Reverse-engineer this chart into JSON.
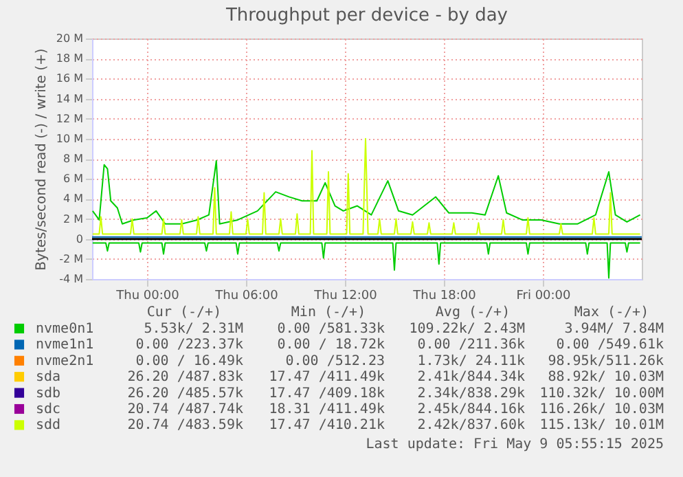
{
  "chart_data": {
    "type": "line",
    "title": "Throughput per device - by day",
    "ylabel": "Bytes/second read (-) / write (+)",
    "xlim": [
      "2025-05-07T20:40",
      "2025-05-09T06:00"
    ],
    "xticks": [
      {
        "value": "2025-05-08T00:00",
        "label": "Thu 00:00"
      },
      {
        "value": "2025-05-08T06:00",
        "label": "Thu 06:00"
      },
      {
        "value": "2025-05-08T12:00",
        "label": "Thu 12:00"
      },
      {
        "value": "2025-05-08T18:00",
        "label": "Thu 18:00"
      },
      {
        "value": "2025-05-09T00:00",
        "label": "Fri 00:00"
      }
    ],
    "ylim": [
      -4,
      20
    ],
    "yticks": [
      {
        "value": -4,
        "label": "-4 M"
      },
      {
        "value": -2,
        "label": "-2 M"
      },
      {
        "value": 0,
        "label": "0"
      },
      {
        "value": 2,
        "label": "2 M"
      },
      {
        "value": 4,
        "label": "4 M"
      },
      {
        "value": 6,
        "label": "6 M"
      },
      {
        "value": 8,
        "label": "8 M"
      },
      {
        "value": 10,
        "label": "10 M"
      },
      {
        "value": 12,
        "label": "12 M"
      },
      {
        "value": 14,
        "label": "14 M"
      },
      {
        "value": 16,
        "label": "16 M"
      },
      {
        "value": 18,
        "label": "18 M"
      },
      {
        "value": 20,
        "label": "20 M"
      }
    ],
    "grid": true,
    "legend": "bottom",
    "line_style": "solid",
    "marker": "none",
    "ref_lines": [
      {
        "axis": "y",
        "value": 0,
        "color": "#000000"
      }
    ],
    "x": [
      "2025-05-07T20:42",
      "2025-05-07T21:06",
      "2025-05-07T21:12",
      "2025-05-07T21:18",
      "2025-05-07T23:00",
      "2025-05-07T23:06",
      "2025-05-07T23:12",
      "2025-05-08T00:54",
      "2025-05-08T01:00",
      "2025-05-08T01:06",
      "2025-05-08T02:00",
      "2025-05-08T02:06",
      "2025-05-08T02:12",
      "2025-05-08T03:00",
      "2025-05-08T03:06",
      "2025-05-08T03:12",
      "2025-05-08T04:00",
      "2025-05-08T04:06",
      "2025-05-08T04:12",
      "2025-05-08T05:00",
      "2025-05-08T05:06",
      "2025-05-08T05:12",
      "2025-05-08T06:00",
      "2025-05-08T06:06",
      "2025-05-08T06:12",
      "2025-05-08T07:00",
      "2025-05-08T07:06",
      "2025-05-08T07:12",
      "2025-05-08T08:00",
      "2025-05-08T08:06",
      "2025-05-08T08:12",
      "2025-05-08T09:00",
      "2025-05-08T09:06",
      "2025-05-08T09:12",
      "2025-05-08T09:54",
      "2025-05-08T10:00",
      "2025-05-08T10:06",
      "2025-05-08T10:54",
      "2025-05-08T11:00",
      "2025-05-08T11:06",
      "2025-05-08T12:06",
      "2025-05-08T12:12",
      "2025-05-08T12:18",
      "2025-05-08T13:06",
      "2025-05-08T13:15",
      "2025-05-08T13:24",
      "2025-05-08T14:00",
      "2025-05-08T14:06",
      "2025-05-08T14:12",
      "2025-05-08T15:00",
      "2025-05-08T15:06",
      "2025-05-08T15:12",
      "2025-05-08T16:00",
      "2025-05-08T16:06",
      "2025-05-08T16:12",
      "2025-05-08T17:00",
      "2025-05-08T17:06",
      "2025-05-08T17:12",
      "2025-05-08T18:30",
      "2025-05-08T18:36",
      "2025-05-08T18:42",
      "2025-05-08T20:00",
      "2025-05-08T20:06",
      "2025-05-08T20:12",
      "2025-05-08T21:30",
      "2025-05-08T21:36",
      "2025-05-08T21:42",
      "2025-05-08T23:00",
      "2025-05-08T23:06",
      "2025-05-08T23:12",
      "2025-05-09T01:00",
      "2025-05-09T01:06",
      "2025-05-09T01:12",
      "2025-05-09T03:00",
      "2025-05-09T03:06",
      "2025-05-09T03:12",
      "2025-05-09T04:00",
      "2025-05-09T04:06",
      "2025-05-09T04:12",
      "2025-05-09T05:54"
    ],
    "series": [
      {
        "name": "nvme0n1",
        "color": "#00cc00",
        "x": [
          "2025-05-07T20:42",
          "2025-05-07T21:06",
          "2025-05-07T21:24",
          "2025-05-07T21:36",
          "2025-05-07T21:48",
          "2025-05-07T22:12",
          "2025-05-07T22:30",
          "2025-05-07T23:12",
          "2025-05-08T00:00",
          "2025-05-08T00:33",
          "2025-05-08T01:06",
          "2025-05-08T02:06",
          "2025-05-08T03:03",
          "2025-05-08T03:45",
          "2025-05-08T04:12",
          "2025-05-08T04:24",
          "2025-05-08T05:30",
          "2025-05-08T06:42",
          "2025-05-08T07:48",
          "2025-05-08T08:36",
          "2025-05-08T09:24",
          "2025-05-08T10:18",
          "2025-05-08T10:48",
          "2025-05-08T11:24",
          "2025-05-08T11:54",
          "2025-05-08T12:45",
          "2025-05-08T13:36",
          "2025-05-08T14:36",
          "2025-05-08T15:15",
          "2025-05-08T16:06",
          "2025-05-08T17:30",
          "2025-05-08T18:18",
          "2025-05-08T19:42",
          "2025-05-08T20:30",
          "2025-05-08T21:18",
          "2025-05-08T21:48",
          "2025-05-08T22:45",
          "2025-05-08T23:54",
          "2025-05-09T01:00",
          "2025-05-09T02:06",
          "2025-05-09T03:12",
          "2025-05-09T04:00",
          "2025-05-09T04:24",
          "2025-05-09T05:06",
          "2025-05-09T05:54"
        ],
        "values": [
          2.8,
          1.9,
          7.4,
          7.0,
          3.8,
          3.1,
          1.5,
          1.9,
          2.1,
          2.8,
          1.5,
          1.5,
          1.9,
          2.4,
          7.8,
          1.5,
          1.9,
          2.8,
          4.7,
          4.2,
          3.8,
          3.8,
          5.6,
          3.3,
          2.8,
          3.3,
          2.4,
          5.8,
          2.8,
          2.4,
          4.2,
          2.6,
          2.6,
          2.4,
          6.3,
          2.6,
          1.9,
          1.9,
          1.5,
          1.5,
          2.4,
          6.7,
          2.4,
          1.7,
          2.4
        ]
      },
      {
        "color": "#00cc00",
        "x": [
          "2025-05-07T20:42",
          "2025-05-07T21:30",
          "2025-05-07T21:36",
          "2025-05-07T21:42",
          "2025-05-07T23:30",
          "2025-05-07T23:36",
          "2025-05-07T23:42",
          "2025-05-08T00:54",
          "2025-05-08T01:00",
          "2025-05-08T01:06",
          "2025-05-08T03:30",
          "2025-05-08T03:36",
          "2025-05-08T03:42",
          "2025-05-08T05:24",
          "2025-05-08T05:30",
          "2025-05-08T05:36",
          "2025-05-08T07:54",
          "2025-05-08T08:00",
          "2025-05-08T08:06",
          "2025-05-08T10:36",
          "2025-05-08T10:42",
          "2025-05-08T10:48",
          "2025-05-08T14:54",
          "2025-05-08T15:00",
          "2025-05-08T15:06",
          "2025-05-08T17:36",
          "2025-05-08T17:42",
          "2025-05-08T17:48",
          "2025-05-08T20:36",
          "2025-05-08T20:42",
          "2025-05-08T20:48",
          "2025-05-08T23:00",
          "2025-05-08T23:06",
          "2025-05-08T23:12",
          "2025-05-09T02:36",
          "2025-05-09T02:42",
          "2025-05-09T02:48",
          "2025-05-09T03:54",
          "2025-05-09T04:00",
          "2025-05-09T04:06",
          "2025-05-09T05:00",
          "2025-05-09T05:06",
          "2025-05-09T05:12",
          "2025-05-09T05:54"
        ],
        "values": [
          -0.4,
          -0.4,
          -1.2,
          -0.4,
          -0.4,
          -1.3,
          -0.4,
          -0.4,
          -1.5,
          -0.4,
          -0.4,
          -1.2,
          -0.4,
          -0.4,
          -1.5,
          -0.4,
          -0.4,
          -1.2,
          -0.4,
          -0.4,
          -1.9,
          -0.4,
          -0.4,
          -3.1,
          -0.4,
          -0.4,
          -2.5,
          -0.4,
          -0.4,
          -1.5,
          -0.4,
          -0.4,
          -1.5,
          -0.4,
          -0.4,
          -1.5,
          -0.4,
          -0.4,
          -3.9,
          -0.4,
          -0.4,
          -1.3,
          -0.4,
          -0.4
        ]
      },
      {
        "name": "nvme1n1",
        "color": "#0066b3",
        "x": [
          "2025-05-07T20:40",
          "2025-05-09T06:00"
        ],
        "values": [
          0.2,
          0.2
        ]
      },
      {
        "name": "nvme2n1",
        "color": "#ff8000",
        "values": [
          null,
          null,
          null,
          null,
          null,
          null,
          null,
          null,
          null,
          null,
          null,
          null,
          null,
          null,
          null,
          null,
          null,
          null,
          null,
          null,
          null,
          null,
          null,
          null,
          null,
          null,
          null,
          null,
          null,
          null,
          null,
          null,
          null,
          null,
          null,
          null,
          null,
          null,
          null,
          null,
          null,
          null,
          null,
          null,
          null,
          null,
          null,
          null,
          null,
          null,
          null,
          null,
          null,
          null,
          null,
          null,
          null,
          null,
          null,
          null,
          null,
          null,
          null,
          null,
          null,
          null,
          null,
          null,
          null,
          null,
          null,
          null,
          null,
          null,
          null,
          null,
          null,
          null,
          null,
          null
        ]
      },
      {
        "name": "sda",
        "color": "#ffcc00",
        "values": [
          null,
          null,
          null,
          null,
          null,
          null,
          null,
          null,
          null,
          null,
          null,
          null,
          null,
          null,
          null,
          null,
          null,
          null,
          null,
          null,
          null,
          null,
          null,
          null,
          null,
          null,
          null,
          null,
          null,
          null,
          null,
          null,
          null,
          null,
          null,
          null,
          null,
          null,
          null,
          null,
          null,
          null,
          null,
          null,
          null,
          null,
          null,
          null,
          null,
          null,
          null,
          null,
          null,
          null,
          null,
          null,
          null,
          null,
          null,
          null,
          null,
          null,
          null,
          null,
          null,
          null,
          null,
          null,
          null,
          null,
          null,
          null,
          null,
          null,
          null,
          null,
          null,
          null,
          null,
          null
        ]
      },
      {
        "name": "sdb",
        "color": "#330099",
        "values": [
          null,
          null,
          null,
          null,
          null,
          null,
          null,
          null,
          null,
          null,
          null,
          null,
          null,
          null,
          null,
          null,
          null,
          null,
          null,
          null,
          null,
          null,
          null,
          null,
          null,
          null,
          null,
          null,
          null,
          null,
          null,
          null,
          null,
          null,
          null,
          null,
          null,
          null,
          null,
          null,
          null,
          null,
          null,
          null,
          null,
          null,
          null,
          null,
          null,
          null,
          null,
          null,
          null,
          null,
          null,
          null,
          null,
          null,
          null,
          null,
          null,
          null,
          null,
          null,
          null,
          null,
          null,
          null,
          null,
          null,
          null,
          null,
          null,
          null,
          null,
          null,
          null,
          null,
          null,
          null
        ]
      },
      {
        "name": "sdc",
        "color": "#990099",
        "values": [
          null,
          null,
          null,
          null,
          null,
          null,
          null,
          null,
          null,
          null,
          null,
          null,
          null,
          null,
          null,
          null,
          null,
          null,
          null,
          null,
          null,
          null,
          null,
          null,
          null,
          null,
          null,
          null,
          null,
          null,
          null,
          null,
          null,
          null,
          null,
          null,
          null,
          null,
          null,
          null,
          null,
          null,
          null,
          null,
          null,
          null,
          null,
          null,
          null,
          null,
          null,
          null,
          null,
          null,
          null,
          null,
          null,
          null,
          null,
          null,
          null,
          null,
          null,
          null,
          null,
          null,
          null,
          null,
          null,
          null,
          null,
          null,
          null,
          null,
          null,
          null,
          null,
          null,
          null,
          null
        ]
      },
      {
        "name": "sdd",
        "color": "#ccff00",
        "values": [
          0.5,
          0.5,
          2.2,
          0.5,
          0.5,
          2.0,
          0.5,
          0.5,
          2.0,
          0.5,
          0.5,
          1.9,
          0.5,
          0.5,
          2.2,
          0.5,
          0.5,
          5.1,
          0.5,
          0.5,
          2.7,
          0.5,
          0.5,
          2.0,
          0.5,
          0.5,
          4.6,
          0.5,
          0.5,
          2.0,
          0.5,
          0.5,
          2.5,
          0.5,
          0.5,
          8.8,
          0.5,
          0.5,
          6.7,
          0.5,
          0.5,
          6.5,
          0.5,
          0.5,
          10.0,
          0.5,
          0.5,
          2.0,
          0.5,
          0.5,
          2.0,
          0.5,
          0.5,
          1.7,
          0.5,
          0.5,
          1.6,
          0.5,
          0.5,
          1.6,
          0.5,
          0.5,
          1.6,
          0.5,
          0.5,
          1.9,
          0.5,
          0.5,
          2.1,
          0.5,
          0.5,
          1.5,
          0.5,
          0.5,
          2.1,
          0.5,
          0.5,
          4.6,
          0.5,
          0.5
        ]
      }
    ],
    "annotations": [
      "Cur (-/+)",
      "Min (-/+)",
      "Avg (-/+)",
      "Max (-/+)",
      "5.53k/  2.31M",
      "0.00 /581.33k",
      "109.22k/  2.43M",
      "3.94M/  7.84M",
      "0.00 /223.37k",
      "0.00 / 18.72k",
      "0.00 /211.36k",
      "0.00 /549.61k",
      "0.00 / 16.49k",
      "0.00 /512.23",
      "1.73k/ 24.11k",
      "98.95k/511.26k",
      "26.20 /487.83k",
      "17.47 /411.49k",
      "2.41k/844.34k",
      "88.92k/ 10.03M",
      "26.20 /485.57k",
      "17.47 /409.18k",
      "2.34k/838.29k",
      "110.32k/ 10.00M",
      "20.74 /487.74k",
      "18.31 /411.49k",
      "2.45k/844.16k",
      "116.26k/ 10.03M",
      "20.74 /483.59k",
      "17.47 /410.21k",
      "2.42k/837.60k",
      "115.13k/ 10.01M",
      "Last update: Fri May  9 05:55:15 2025"
    ]
  }
}
